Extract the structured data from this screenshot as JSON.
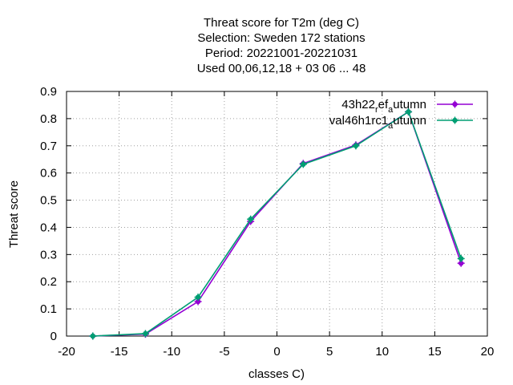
{
  "chart_data": {
    "type": "line",
    "title_lines": [
      "Threat score  for T2m (deg C)",
      "Selection: Sweden    172 stations",
      "Period: 20221001-20221031",
      "Used  00,06,12,18  + 03 06 ... 48"
    ],
    "xlabel": "classes C)",
    "ylabel": "Threat score",
    "xlim": [
      -20,
      20
    ],
    "ylim": [
      0,
      0.9
    ],
    "xticks": [
      -20,
      -15,
      -10,
      -5,
      0,
      5,
      10,
      15,
      20
    ],
    "xtick_labels": [
      "-20",
      "-15",
      "-10",
      "-5",
      "0",
      "5",
      "10",
      "15",
      "20"
    ],
    "yticks": [
      0,
      0.1,
      0.2,
      0.3,
      0.4,
      0.5,
      0.6,
      0.7,
      0.8,
      0.9
    ],
    "ytick_labels": [
      "0",
      "0.1",
      "0.2",
      "0.3",
      "0.4",
      "0.5",
      "0.6",
      "0.7",
      "0.8",
      "0.9"
    ],
    "grid": true,
    "legend_position": "top-right",
    "x": [
      -17.5,
      -12.5,
      -7.5,
      -2.5,
      2.5,
      7.5,
      12.5,
      17.5
    ],
    "series": [
      {
        "name": "43h22",
        "name_sub": "r",
        "name_mid": "ef",
        "name_sub2": "a",
        "name_tail": "utumn",
        "color": "#9400d3",
        "values": [
          0.0,
          0.007,
          0.127,
          0.422,
          0.635,
          0.703,
          0.825,
          0.268
        ]
      },
      {
        "name": "val46h1rc1",
        "name_sub": "",
        "name_mid": "",
        "name_sub2": "a",
        "name_tail": "utumn",
        "color": "#009e73",
        "values": [
          0.0,
          0.009,
          0.143,
          0.43,
          0.632,
          0.7,
          0.825,
          0.285
        ]
      }
    ]
  }
}
